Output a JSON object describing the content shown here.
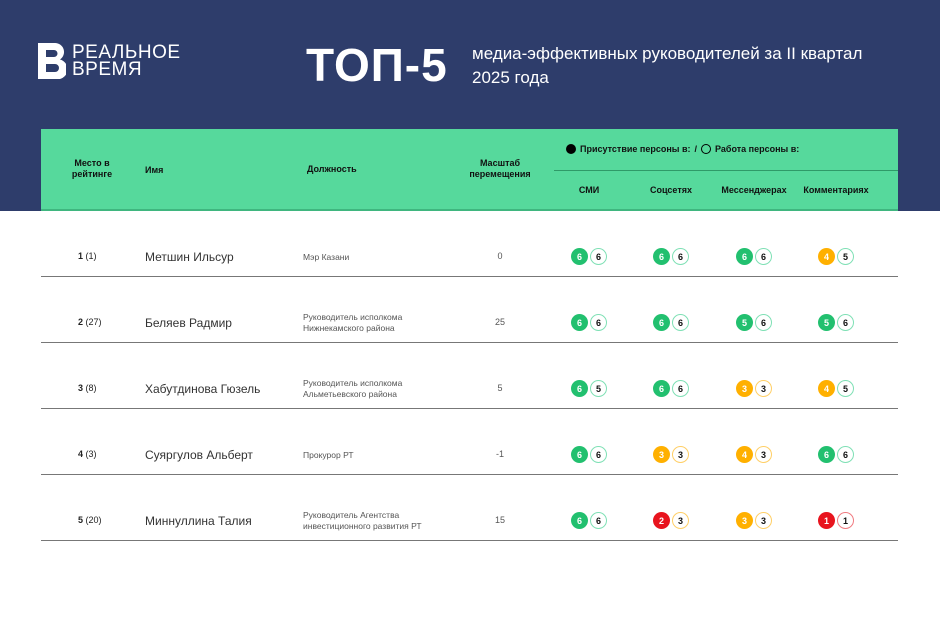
{
  "header": {
    "logo_line1": "РЕАЛЬНОЕ",
    "logo_line2": "ВРЕМЯ",
    "title": "ТОП-5",
    "subtitle": "медиа-эффективных руководителей за II квартал 2025 года"
  },
  "colors": {
    "navy": "#2e3d6b",
    "header_green": "#56d99c",
    "high": "#22c06f",
    "mid": "#ffb000",
    "low": "#e8141e"
  },
  "table": {
    "columns": {
      "rank": "Место в рейтинге",
      "name": "Имя",
      "position": "Должность",
      "scale": "Масштаб перемещения",
      "smi": "СМИ",
      "social": "Соцсетях",
      "messengers": "Мессенджерах",
      "comments": "Комментариях"
    },
    "legend": {
      "presence": "Присутствие персоны в:",
      "sep": "/",
      "work": "Работа персоны в:"
    },
    "rows": [
      {
        "rank": "1",
        "prev": "(1)",
        "name": "Метшин Ильсур",
        "position": "Мэр Казани",
        "scale": "0",
        "scores": [
          [
            6,
            6
          ],
          [
            6,
            6
          ],
          [
            6,
            6
          ],
          [
            4,
            5
          ]
        ]
      },
      {
        "rank": "2",
        "prev": "(27)",
        "name": "Беляев Радмир",
        "position": "Руководитель исполкома Нижнекамского района",
        "scale": "25",
        "scores": [
          [
            6,
            6
          ],
          [
            6,
            6
          ],
          [
            5,
            6
          ],
          [
            5,
            6
          ]
        ]
      },
      {
        "rank": "3",
        "prev": "(8)",
        "name": "Хабутдинова Гюзель",
        "position": "Руководитель исполкома Альметьевского района",
        "scale": "5",
        "scores": [
          [
            6,
            5
          ],
          [
            6,
            6
          ],
          [
            3,
            3
          ],
          [
            4,
            5
          ]
        ]
      },
      {
        "rank": "4",
        "prev": "(3)",
        "name": "Суяргулов Альберт",
        "position": "Прокурор РТ",
        "scale": "-1",
        "scores": [
          [
            6,
            6
          ],
          [
            3,
            3
          ],
          [
            4,
            3
          ],
          [
            6,
            6
          ]
        ]
      },
      {
        "rank": "5",
        "prev": "(20)",
        "name": "Миннуллина Талия",
        "position": "Руководитель Агентства инвестиционного развития РТ",
        "scale": "15",
        "scores": [
          [
            6,
            6
          ],
          [
            2,
            3
          ],
          [
            3,
            3
          ],
          [
            1,
            1
          ]
        ]
      }
    ]
  }
}
